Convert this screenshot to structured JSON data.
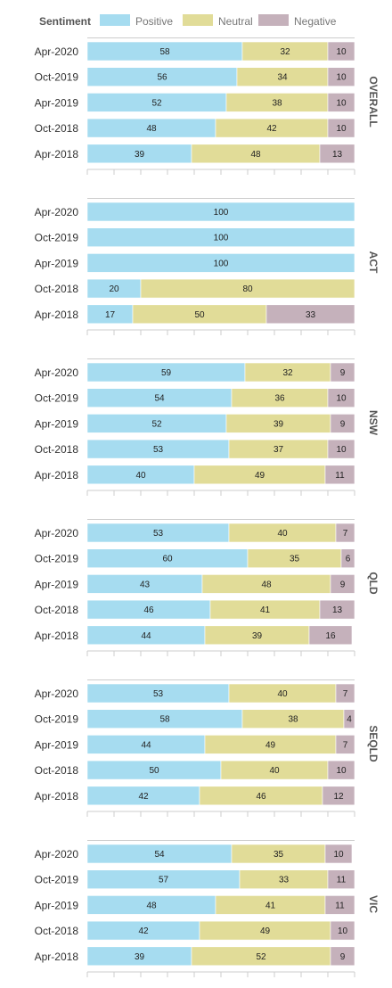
{
  "legend": {
    "title": "Sentiment",
    "items": [
      {
        "label": "Positive",
        "color": "#a6dcf0"
      },
      {
        "label": "Neutral",
        "color": "#e1dc98"
      },
      {
        "label": "Negative",
        "color": "#c5b1bb"
      }
    ]
  },
  "chart_data": {
    "type": "bar",
    "orientation": "horizontal",
    "stacked": true,
    "xlim": [
      0,
      100
    ],
    "categories": [
      "Apr-2020",
      "Oct-2019",
      "Apr-2019",
      "Oct-2018",
      "Apr-2018"
    ],
    "series_names": [
      "Positive",
      "Neutral",
      "Negative"
    ],
    "panels": [
      {
        "label": "OVERALL",
        "rows": [
          {
            "category": "Apr-2020",
            "values": [
              58,
              32,
              10
            ]
          },
          {
            "category": "Oct-2019",
            "values": [
              56,
              34,
              10
            ]
          },
          {
            "category": "Apr-2019",
            "values": [
              52,
              38,
              10
            ]
          },
          {
            "category": "Oct-2018",
            "values": [
              48,
              42,
              10
            ]
          },
          {
            "category": "Apr-2018",
            "values": [
              39,
              48,
              13
            ]
          }
        ]
      },
      {
        "label": "ACT",
        "rows": [
          {
            "category": "Apr-2020",
            "values": [
              100,
              0,
              0
            ]
          },
          {
            "category": "Oct-2019",
            "values": [
              100,
              0,
              0
            ]
          },
          {
            "category": "Apr-2019",
            "values": [
              100,
              0,
              0
            ]
          },
          {
            "category": "Oct-2018",
            "values": [
              20,
              80,
              0
            ]
          },
          {
            "category": "Apr-2018",
            "values": [
              17,
              50,
              33
            ]
          }
        ]
      },
      {
        "label": "NSW",
        "rows": [
          {
            "category": "Apr-2020",
            "values": [
              59,
              32,
              9
            ]
          },
          {
            "category": "Oct-2019",
            "values": [
              54,
              36,
              10
            ]
          },
          {
            "category": "Apr-2019",
            "values": [
              52,
              39,
              9
            ]
          },
          {
            "category": "Oct-2018",
            "values": [
              53,
              37,
              10
            ]
          },
          {
            "category": "Apr-2018",
            "values": [
              40,
              49,
              11
            ]
          }
        ]
      },
      {
        "label": "QLD",
        "rows": [
          {
            "category": "Apr-2020",
            "values": [
              53,
              40,
              7
            ]
          },
          {
            "category": "Oct-2019",
            "values": [
              60,
              35,
              6
            ]
          },
          {
            "category": "Apr-2019",
            "values": [
              43,
              48,
              9
            ]
          },
          {
            "category": "Oct-2018",
            "values": [
              46,
              41,
              13
            ]
          },
          {
            "category": "Apr-2018",
            "values": [
              44,
              39,
              16
            ]
          }
        ]
      },
      {
        "label": "SEQLD",
        "rows": [
          {
            "category": "Apr-2020",
            "values": [
              53,
              40,
              7
            ]
          },
          {
            "category": "Oct-2019",
            "values": [
              58,
              38,
              4
            ]
          },
          {
            "category": "Apr-2019",
            "values": [
              44,
              49,
              7
            ]
          },
          {
            "category": "Oct-2018",
            "values": [
              50,
              40,
              10
            ]
          },
          {
            "category": "Apr-2018",
            "values": [
              42,
              46,
              12
            ]
          }
        ]
      },
      {
        "label": "VIC",
        "rows": [
          {
            "category": "Apr-2020",
            "values": [
              54,
              35,
              10
            ]
          },
          {
            "category": "Oct-2019",
            "values": [
              57,
              33,
              11
            ]
          },
          {
            "category": "Apr-2019",
            "values": [
              48,
              41,
              11
            ]
          },
          {
            "category": "Oct-2018",
            "values": [
              42,
              49,
              10
            ]
          },
          {
            "category": "Apr-2018",
            "values": [
              39,
              52,
              9
            ]
          }
        ]
      }
    ]
  }
}
